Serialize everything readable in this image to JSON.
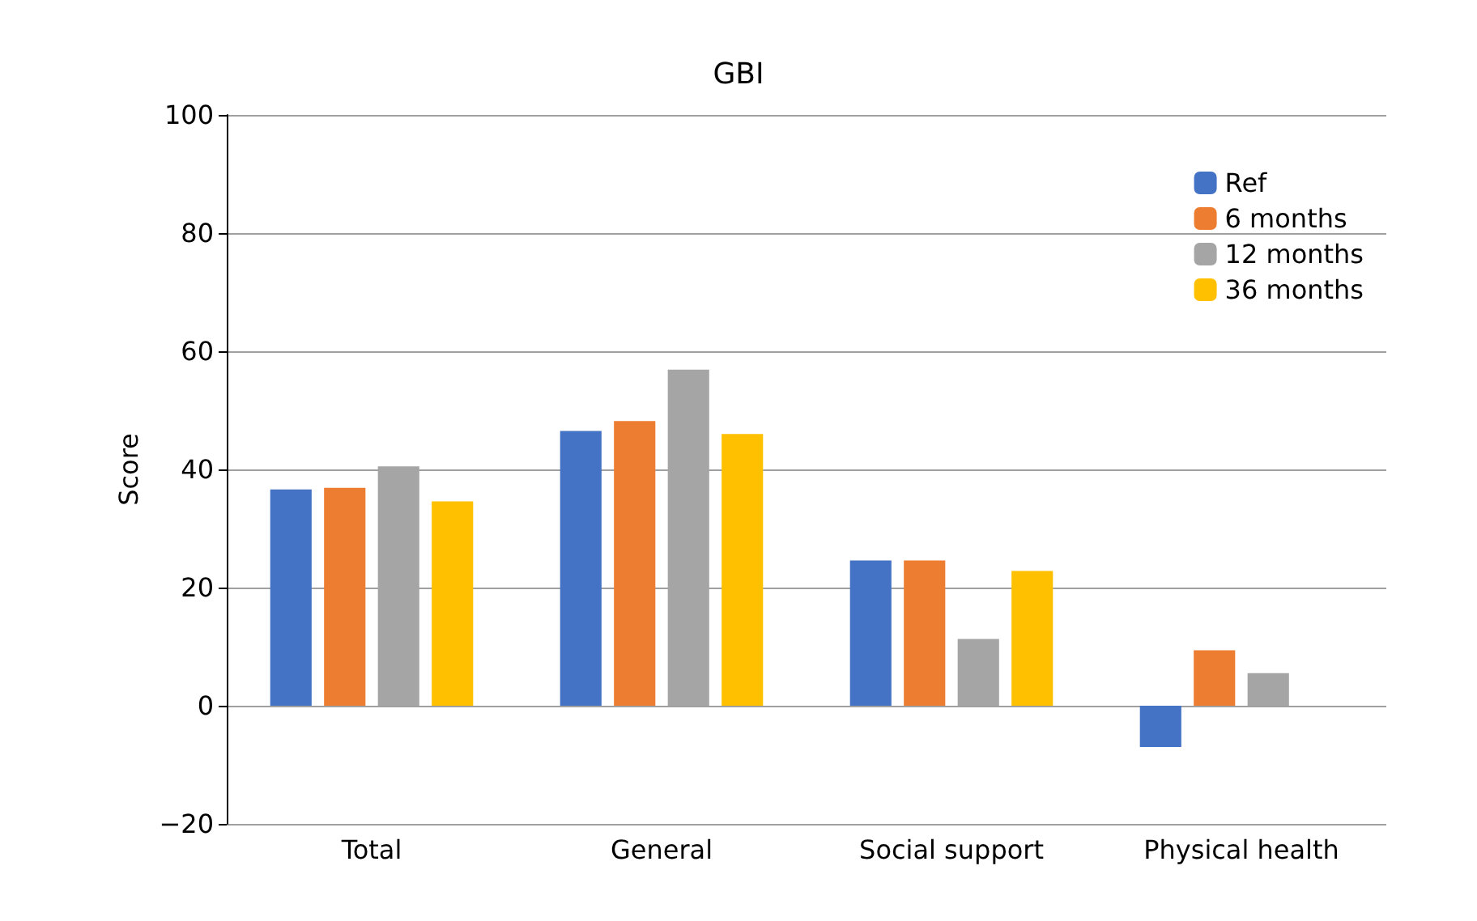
{
  "chart_data": {
    "type": "bar",
    "title": "GBI",
    "ylabel": "Score",
    "categories": [
      "Total",
      "General",
      "Social support",
      "Physical health"
    ],
    "series": [
      {
        "name": "Ref",
        "color": "#4472c4",
        "values": [
          36.6,
          46.5,
          24.6,
          -7.0
        ]
      },
      {
        "name": "6 months",
        "color": "#ed7d31",
        "values": [
          36.9,
          48.2,
          24.6,
          9.4
        ]
      },
      {
        "name": "12 months",
        "color": "#a5a5a5",
        "values": [
          40.5,
          56.9,
          11.3,
          5.5
        ]
      },
      {
        "name": "36 months",
        "color": "#ffc000",
        "values": [
          34.6,
          46.0,
          22.8,
          null
        ]
      }
    ],
    "ylim": [
      -20,
      100
    ],
    "yticks": [
      -20,
      0,
      20,
      40,
      60,
      80,
      100
    ],
    "grid": "y",
    "legend": "top right"
  }
}
